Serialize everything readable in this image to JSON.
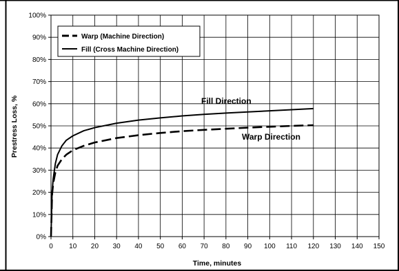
{
  "chart_data": {
    "type": "line",
    "title": "",
    "xlabel": "Time, minutes",
    "ylabel": "Prestress Loss, %",
    "xlim": [
      0,
      150
    ],
    "ylim": [
      0,
      100
    ],
    "x_ticks": [
      0,
      10,
      20,
      30,
      40,
      50,
      60,
      70,
      80,
      90,
      100,
      110,
      120,
      130,
      140,
      150
    ],
    "y_ticks": [
      "0%",
      "10%",
      "20%",
      "30%",
      "40%",
      "50%",
      "60%",
      "70%",
      "80%",
      "90%",
      "100%"
    ],
    "grid": true,
    "legend_position": "top-left",
    "series": [
      {
        "name": "Warp (Machine Direction)",
        "style": "dashed",
        "color": "#000000",
        "x": [
          0,
          0.5,
          1,
          2,
          3,
          5,
          7,
          10,
          15,
          20,
          30,
          40,
          50,
          60,
          70,
          80,
          90,
          100,
          110,
          120
        ],
        "y": [
          0,
          19,
          24,
          29,
          32,
          35,
          37,
          39,
          41,
          42.5,
          44.5,
          45.8,
          46.8,
          47.6,
          48.2,
          48.7,
          49.2,
          49.6,
          50,
          50.3
        ]
      },
      {
        "name": "Fill (Cross Machine Direction)",
        "style": "solid",
        "color": "#000000",
        "x": [
          0,
          0.5,
          1,
          2,
          3,
          5,
          7,
          10,
          15,
          20,
          30,
          40,
          50,
          60,
          70,
          80,
          90,
          100,
          110,
          120
        ],
        "y": [
          0,
          20,
          26,
          33,
          37,
          41,
          43.5,
          45.5,
          47.8,
          49.2,
          51.2,
          52.6,
          53.6,
          54.5,
          55.2,
          55.8,
          56.3,
          56.8,
          57.3,
          57.8
        ]
      }
    ],
    "annotations": [
      "Fill Direction",
      "Warp Direction"
    ]
  }
}
